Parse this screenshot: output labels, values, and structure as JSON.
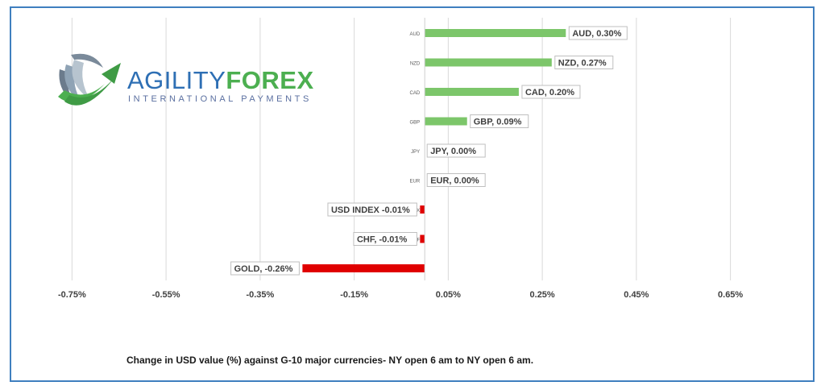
{
  "logo": {
    "word_part1": "AGILITY",
    "word_part2": "FOREX",
    "tagline": "INTERNATIONAL PAYMENTS",
    "icon": "swoosh-globe-icon"
  },
  "caption": "Change in  USD value (%)  against  G-10 major currencies- NY open 6 am to NY open 6 am.",
  "colors": {
    "positive": "#7cc66a",
    "negative": "#e00000",
    "frame": "#3f7fbf",
    "grid": "#d9d9d9",
    "label_border": "#bfbfbf"
  },
  "chart_data": {
    "type": "bar",
    "orientation": "horizontal",
    "categories": [
      "AUD",
      "NZD",
      "CAD",
      "GBP",
      "JPY",
      "EUR",
      "USD INDEX",
      "CHF",
      "GOLD"
    ],
    "values": [
      0.3,
      0.27,
      0.2,
      0.09,
      0.0,
      0.0,
      -0.01,
      -0.01,
      -0.26
    ],
    "data_labels": [
      "AUD, 0.30%",
      "NZD, 0.27%",
      "CAD, 0.20%",
      "GBP, 0.09%",
      "JPY, 0.00%",
      "EUR, 0.00%",
      "USD INDEX -0.01%",
      "CHF, -0.01%",
      "GOLD, -0.26%"
    ],
    "x_ticks": [
      -0.75,
      -0.55,
      -0.35,
      -0.15,
      0.05,
      0.25,
      0.45,
      0.65
    ],
    "x_tick_labels": [
      "-0.75%",
      "-0.55%",
      "-0.35%",
      "-0.15%",
      "0.05%",
      "0.25%",
      "0.45%",
      "0.65%"
    ],
    "xlim": [
      -0.85,
      0.75
    ],
    "grid": true,
    "legend": "none"
  }
}
